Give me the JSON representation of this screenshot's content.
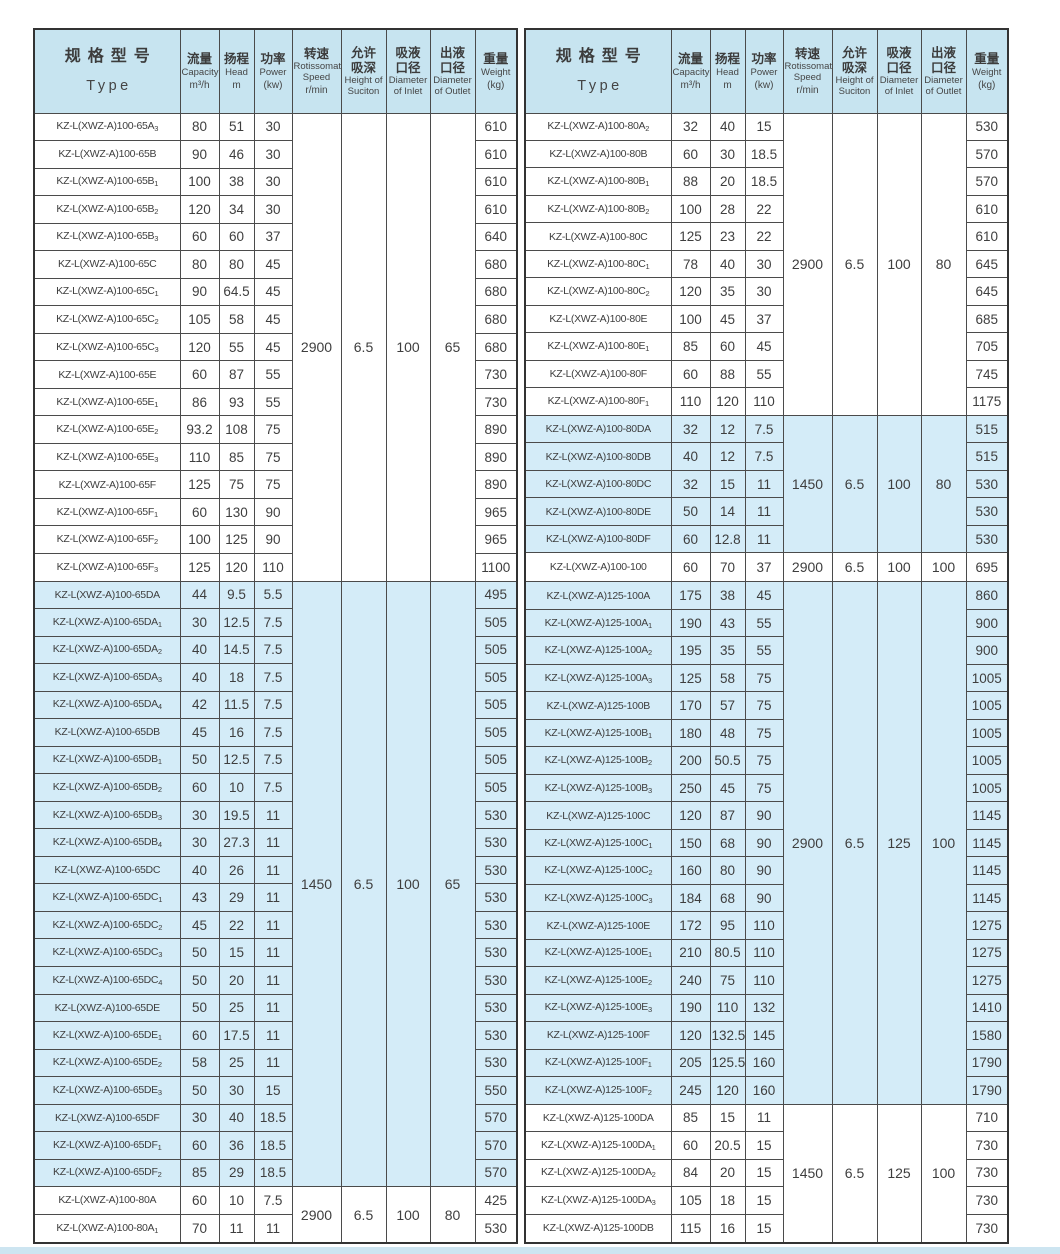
{
  "page": {
    "background": "#ffffff",
    "strip_color": "#cde5f1",
    "header_bg": "#c7e4f0",
    "shaded_row_bg": "#d4ecf8"
  },
  "columns": [
    {
      "key": "type",
      "cn": "规格型号",
      "en": "Type",
      "unit": ""
    },
    {
      "key": "capacity",
      "cn": "流量",
      "en": "Capacity",
      "unit": "m³/h"
    },
    {
      "key": "head",
      "cn": "扬程",
      "en": "Head",
      "unit": "m"
    },
    {
      "key": "power",
      "cn": "功率",
      "en": "Power",
      "unit": "(kw)"
    },
    {
      "key": "speed",
      "cn": "转速",
      "en": "Rotissomat Speed",
      "unit": "r/min"
    },
    {
      "key": "suction",
      "cn": "允许\n吸深",
      "en": "Height of Suciton",
      "unit": ""
    },
    {
      "key": "inlet",
      "cn": "吸液\n口径",
      "en": "Diameter of Inlet",
      "unit": ""
    },
    {
      "key": "outlet",
      "cn": "出液\n口径",
      "en": "Diameter of Outlet",
      "unit": ""
    },
    {
      "key": "weight",
      "cn": "重量",
      "en": "Weight",
      "unit": "(kg)"
    }
  ],
  "tables": [
    {
      "id": "left",
      "sections": [
        {
          "shaded": false,
          "speed": "2900",
          "suction": "6.5",
          "inlet": "100",
          "outlet": "65",
          "rows": [
            [
              "KZ-L(XWZ-A)100-65A",
              "3",
              "80",
              "51",
              "30",
              "610"
            ],
            [
              "KZ-L(XWZ-A)100-65B",
              "",
              "90",
              "46",
              "30",
              "610"
            ],
            [
              "KZ-L(XWZ-A)100-65B",
              "1",
              "100",
              "38",
              "30",
              "610"
            ],
            [
              "KZ-L(XWZ-A)100-65B",
              "2",
              "120",
              "34",
              "30",
              "610"
            ],
            [
              "KZ-L(XWZ-A)100-65B",
              "3",
              "60",
              "60",
              "37",
              "640"
            ],
            [
              "KZ-L(XWZ-A)100-65C",
              "",
              "80",
              "80",
              "45",
              "680"
            ],
            [
              "KZ-L(XWZ-A)100-65C",
              "1",
              "90",
              "64.5",
              "45",
              "680"
            ],
            [
              "KZ-L(XWZ-A)100-65C",
              "2",
              "105",
              "58",
              "45",
              "680"
            ],
            [
              "KZ-L(XWZ-A)100-65C",
              "3",
              "120",
              "55",
              "45",
              "680"
            ],
            [
              "KZ-L(XWZ-A)100-65E",
              "",
              "60",
              "87",
              "55",
              "730"
            ],
            [
              "KZ-L(XWZ-A)100-65E",
              "1",
              "86",
              "93",
              "55",
              "730"
            ],
            [
              "KZ-L(XWZ-A)100-65E",
              "2",
              "93.2",
              "108",
              "75",
              "890"
            ],
            [
              "KZ-L(XWZ-A)100-65E",
              "3",
              "110",
              "85",
              "75",
              "890"
            ],
            [
              "KZ-L(XWZ-A)100-65F",
              "",
              "125",
              "75",
              "75",
              "890"
            ],
            [
              "KZ-L(XWZ-A)100-65F",
              "1",
              "60",
              "130",
              "90",
              "965"
            ],
            [
              "KZ-L(XWZ-A)100-65F",
              "2",
              "100",
              "125",
              "90",
              "965"
            ],
            [
              "KZ-L(XWZ-A)100-65F",
              "3",
              "125",
              "120",
              "110",
              "1100"
            ]
          ]
        },
        {
          "shaded": true,
          "speed": "1450",
          "suction": "6.5",
          "inlet": "100",
          "outlet": "65",
          "rows": [
            [
              "KZ-L(XWZ-A)100-65DA",
              "",
              "44",
              "9.5",
              "5.5",
              "495"
            ],
            [
              "KZ-L(XWZ-A)100-65DA",
              "1",
              "30",
              "12.5",
              "7.5",
              "505"
            ],
            [
              "KZ-L(XWZ-A)100-65DA",
              "2",
              "40",
              "14.5",
              "7.5",
              "505"
            ],
            [
              "KZ-L(XWZ-A)100-65DA",
              "3",
              "40",
              "18",
              "7.5",
              "505"
            ],
            [
              "KZ-L(XWZ-A)100-65DA",
              "4",
              "42",
              "11.5",
              "7.5",
              "505"
            ],
            [
              "KZ-L(XWZ-A)100-65DB",
              "",
              "45",
              "16",
              "7.5",
              "505"
            ],
            [
              "KZ-L(XWZ-A)100-65DB",
              "1",
              "50",
              "12.5",
              "7.5",
              "505"
            ],
            [
              "KZ-L(XWZ-A)100-65DB",
              "2",
              "60",
              "10",
              "7.5",
              "505"
            ],
            [
              "KZ-L(XWZ-A)100-65DB",
              "3",
              "30",
              "19.5",
              "11",
              "530"
            ],
            [
              "KZ-L(XWZ-A)100-65DB",
              "4",
              "30",
              "27.3",
              "11",
              "530"
            ],
            [
              "KZ-L(XWZ-A)100-65DC",
              "",
              "40",
              "26",
              "11",
              "530"
            ],
            [
              "KZ-L(XWZ-A)100-65DC",
              "1",
              "43",
              "29",
              "11",
              "530"
            ],
            [
              "KZ-L(XWZ-A)100-65DC",
              "2",
              "45",
              "22",
              "11",
              "530"
            ],
            [
              "KZ-L(XWZ-A)100-65DC",
              "3",
              "50",
              "15",
              "11",
              "530"
            ],
            [
              "KZ-L(XWZ-A)100-65DC",
              "4",
              "50",
              "20",
              "11",
              "530"
            ],
            [
              "KZ-L(XWZ-A)100-65DE",
              "",
              "50",
              "25",
              "11",
              "530"
            ],
            [
              "KZ-L(XWZ-A)100-65DE",
              "1",
              "60",
              "17.5",
              "11",
              "530"
            ],
            [
              "KZ-L(XWZ-A)100-65DE",
              "2",
              "58",
              "25",
              "11",
              "530"
            ],
            [
              "KZ-L(XWZ-A)100-65DE",
              "3",
              "50",
              "30",
              "15",
              "550"
            ],
            [
              "KZ-L(XWZ-A)100-65DF",
              "",
              "30",
              "40",
              "18.5",
              "570"
            ],
            [
              "KZ-L(XWZ-A)100-65DF",
              "1",
              "60",
              "36",
              "18.5",
              "570"
            ],
            [
              "KZ-L(XWZ-A)100-65DF",
              "2",
              "85",
              "29",
              "18.5",
              "570"
            ]
          ]
        },
        {
          "shaded": false,
          "speed": "2900",
          "suction": "6.5",
          "inlet": "100",
          "outlet": "80",
          "rows": [
            [
              "KZ-L(XWZ-A)100-80A",
              "",
              "60",
              "10",
              "7.5",
              "425"
            ],
            [
              "KZ-L(XWZ-A)100-80A",
              "1",
              "70",
              "11",
              "11",
              "530"
            ]
          ]
        }
      ]
    },
    {
      "id": "right",
      "sections": [
        {
          "shaded": false,
          "speed": "2900",
          "suction": "6.5",
          "inlet": "100",
          "outlet": "80",
          "rows": [
            [
              "KZ-L(XWZ-A)100-80A",
              "2",
              "32",
              "40",
              "15",
              "530"
            ],
            [
              "KZ-L(XWZ-A)100-80B",
              "",
              "60",
              "30",
              "18.5",
              "570"
            ],
            [
              "KZ-L(XWZ-A)100-80B",
              "1",
              "88",
              "20",
              "18.5",
              "570"
            ],
            [
              "KZ-L(XWZ-A)100-80B",
              "2",
              "100",
              "28",
              "22",
              "610"
            ],
            [
              "KZ-L(XWZ-A)100-80C",
              "",
              "125",
              "23",
              "22",
              "610"
            ],
            [
              "KZ-L(XWZ-A)100-80C",
              "1",
              "78",
              "40",
              "30",
              "645"
            ],
            [
              "KZ-L(XWZ-A)100-80C",
              "2",
              "120",
              "35",
              "30",
              "645"
            ],
            [
              "KZ-L(XWZ-A)100-80E",
              "",
              "100",
              "45",
              "37",
              "685"
            ],
            [
              "KZ-L(XWZ-A)100-80E",
              "1",
              "85",
              "60",
              "45",
              "705"
            ],
            [
              "KZ-L(XWZ-A)100-80F",
              "",
              "60",
              "88",
              "55",
              "745"
            ],
            [
              "KZ-L(XWZ-A)100-80F",
              "1",
              "110",
              "120",
              "110",
              "1175"
            ]
          ]
        },
        {
          "shaded": true,
          "speed": "1450",
          "suction": "6.5",
          "inlet": "100",
          "outlet": "80",
          "rows": [
            [
              "KZ-L(XWZ-A)100-80DA",
              "",
              "32",
              "12",
              "7.5",
              "515"
            ],
            [
              "KZ-L(XWZ-A)100-80DB",
              "",
              "40",
              "12",
              "7.5",
              "515"
            ],
            [
              "KZ-L(XWZ-A)100-80DC",
              "",
              "32",
              "15",
              "11",
              "530"
            ],
            [
              "KZ-L(XWZ-A)100-80DE",
              "",
              "50",
              "14",
              "11",
              "530"
            ],
            [
              "KZ-L(XWZ-A)100-80DF",
              "",
              "60",
              "12.8",
              "11",
              "530"
            ]
          ]
        },
        {
          "shaded": false,
          "speed": "2900",
          "suction": "6.5",
          "inlet": "100",
          "outlet": "100",
          "rows": [
            [
              "KZ-L(XWZ-A)100-100",
              "",
              "60",
              "70",
              "37",
              "695"
            ]
          ]
        },
        {
          "shaded": true,
          "speed": "2900",
          "suction": "6.5",
          "inlet": "125",
          "outlet": "100",
          "rows": [
            [
              "KZ-L(XWZ-A)125-100A",
              "",
              "175",
              "38",
              "45",
              "860"
            ],
            [
              "KZ-L(XWZ-A)125-100A",
              "1",
              "190",
              "43",
              "55",
              "900"
            ],
            [
              "KZ-L(XWZ-A)125-100A",
              "2",
              "195",
              "35",
              "55",
              "900"
            ],
            [
              "KZ-L(XWZ-A)125-100A",
              "3",
              "125",
              "58",
              "75",
              "1005"
            ],
            [
              "KZ-L(XWZ-A)125-100B",
              "",
              "170",
              "57",
              "75",
              "1005"
            ],
            [
              "KZ-L(XWZ-A)125-100B",
              "1",
              "180",
              "48",
              "75",
              "1005"
            ],
            [
              "KZ-L(XWZ-A)125-100B",
              "2",
              "200",
              "50.5",
              "75",
              "1005"
            ],
            [
              "KZ-L(XWZ-A)125-100B",
              "3",
              "250",
              "45",
              "75",
              "1005"
            ],
            [
              "KZ-L(XWZ-A)125-100C",
              "",
              "120",
              "87",
              "90",
              "1145"
            ],
            [
              "KZ-L(XWZ-A)125-100C",
              "1",
              "150",
              "68",
              "90",
              "1145"
            ],
            [
              "KZ-L(XWZ-A)125-100C",
              "2",
              "160",
              "80",
              "90",
              "1145"
            ],
            [
              "KZ-L(XWZ-A)125-100C",
              "3",
              "184",
              "68",
              "90",
              "1145"
            ],
            [
              "KZ-L(XWZ-A)125-100E",
              "",
              "172",
              "95",
              "110",
              "1275"
            ],
            [
              "KZ-L(XWZ-A)125-100E",
              "1",
              "210",
              "80.5",
              "110",
              "1275"
            ],
            [
              "KZ-L(XWZ-A)125-100E",
              "2",
              "240",
              "75",
              "110",
              "1275"
            ],
            [
              "KZ-L(XWZ-A)125-100E",
              "3",
              "190",
              "110",
              "132",
              "1410"
            ],
            [
              "KZ-L(XWZ-A)125-100F",
              "",
              "120",
              "132.5",
              "145",
              "1580"
            ],
            [
              "KZ-L(XWZ-A)125-100F",
              "1",
              "205",
              "125.5",
              "160",
              "1790"
            ],
            [
              "KZ-L(XWZ-A)125-100F",
              "2",
              "245",
              "120",
              "160",
              "1790"
            ]
          ]
        },
        {
          "shaded": false,
          "speed": "1450",
          "suction": "6.5",
          "inlet": "125",
          "outlet": "100",
          "rows": [
            [
              "KZ-L(XWZ-A)125-100DA",
              "",
              "85",
              "15",
              "11",
              "710"
            ],
            [
              "KZ-L(XWZ-A)125-100DA",
              "1",
              "60",
              "20.5",
              "15",
              "730"
            ],
            [
              "KZ-L(XWZ-A)125-100DA",
              "2",
              "84",
              "20",
              "15",
              "730"
            ],
            [
              "KZ-L(XWZ-A)125-100DA",
              "3",
              "105",
              "18",
              "15",
              "730"
            ],
            [
              "KZ-L(XWZ-A)125-100DB",
              "",
              "115",
              "16",
              "15",
              "730"
            ]
          ]
        }
      ]
    }
  ]
}
